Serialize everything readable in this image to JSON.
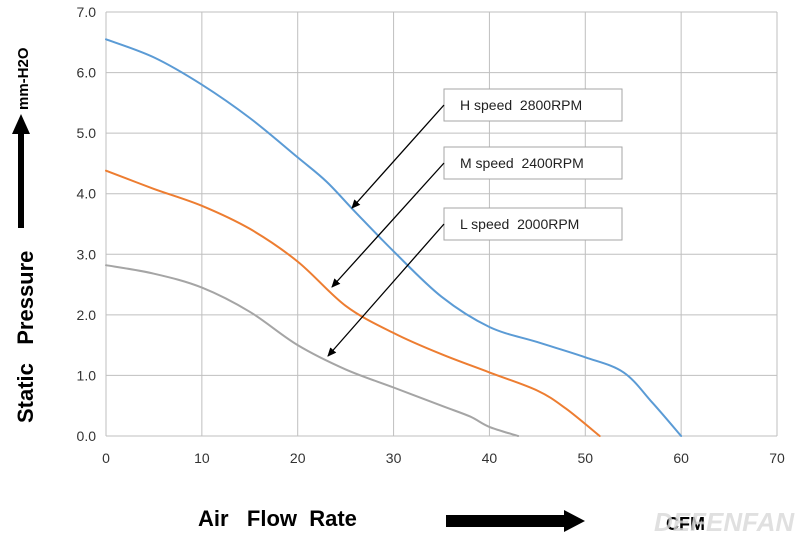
{
  "chart_data": {
    "type": "line",
    "title": "",
    "xlabel": "Air   Flow  Rate",
    "ylabel": "Static   Pressure",
    "xunit": "CFM",
    "yunit": "mm-H2O",
    "xlim": [
      0,
      70
    ],
    "ylim": [
      0,
      7
    ],
    "xticks": [
      "0",
      "10",
      "20",
      "30",
      "40",
      "50",
      "60",
      "70"
    ],
    "yticks": [
      "0.0",
      "1.0",
      "2.0",
      "3.0",
      "4.0",
      "5.0",
      "6.0",
      "7.0"
    ],
    "grid": true,
    "series": [
      {
        "name": "H speed  2800RPM",
        "color": "#5b9bd5",
        "points": [
          [
            0,
            6.55
          ],
          [
            5,
            6.25
          ],
          [
            10,
            5.8
          ],
          [
            15,
            5.25
          ],
          [
            20,
            4.6
          ],
          [
            23,
            4.2
          ],
          [
            26,
            3.7
          ],
          [
            30,
            3.05
          ],
          [
            35,
            2.3
          ],
          [
            40,
            1.8
          ],
          [
            45,
            1.55
          ],
          [
            50,
            1.3
          ],
          [
            54,
            1.05
          ],
          [
            57,
            0.55
          ],
          [
            60,
            0
          ]
        ]
      },
      {
        "name": "M speed  2400RPM",
        "color": "#ed7d31",
        "points": [
          [
            0,
            4.38
          ],
          [
            5,
            4.08
          ],
          [
            10,
            3.8
          ],
          [
            15,
            3.42
          ],
          [
            20,
            2.88
          ],
          [
            25,
            2.15
          ],
          [
            30,
            1.7
          ],
          [
            35,
            1.35
          ],
          [
            40,
            1.05
          ],
          [
            45,
            0.75
          ],
          [
            48,
            0.45
          ],
          [
            51.5,
            0
          ]
        ]
      },
      {
        "name": "L speed  2000RPM",
        "color": "#a5a5a5",
        "points": [
          [
            0,
            2.82
          ],
          [
            5,
            2.68
          ],
          [
            10,
            2.45
          ],
          [
            15,
            2.05
          ],
          [
            20,
            1.5
          ],
          [
            25,
            1.1
          ],
          [
            30,
            0.8
          ],
          [
            35,
            0.5
          ],
          [
            38,
            0.32
          ],
          [
            40,
            0.15
          ],
          [
            43,
            0
          ]
        ]
      }
    ],
    "annotations": [
      {
        "label": "H speed  2800RPM",
        "points_to": [
          25.5,
          3.75
        ]
      },
      {
        "label": "M speed  2400RPM",
        "points_to": [
          23.5,
          2.45
        ]
      },
      {
        "label": "L speed  2000RPM",
        "points_to": [
          23,
          1.3
        ]
      }
    ]
  },
  "watermark": "DEFENFAN",
  "colors": {
    "grid": "#bfbfbf",
    "axis_text": "#333333",
    "arrow": "#000000"
  }
}
